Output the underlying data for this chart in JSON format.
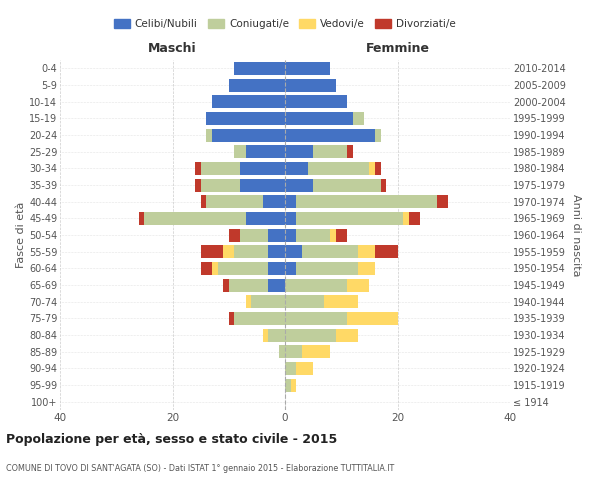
{
  "age_groups": [
    "100+",
    "95-99",
    "90-94",
    "85-89",
    "80-84",
    "75-79",
    "70-74",
    "65-69",
    "60-64",
    "55-59",
    "50-54",
    "45-49",
    "40-44",
    "35-39",
    "30-34",
    "25-29",
    "20-24",
    "15-19",
    "10-14",
    "5-9",
    "0-4"
  ],
  "birth_years": [
    "≤ 1914",
    "1915-1919",
    "1920-1924",
    "1925-1929",
    "1930-1934",
    "1935-1939",
    "1940-1944",
    "1945-1949",
    "1950-1954",
    "1955-1959",
    "1960-1964",
    "1965-1969",
    "1970-1974",
    "1975-1979",
    "1980-1984",
    "1985-1989",
    "1990-1994",
    "1995-1999",
    "2000-2004",
    "2005-2009",
    "2010-2014"
  ],
  "males": {
    "celibi": [
      0,
      0,
      0,
      0,
      0,
      0,
      0,
      3,
      3,
      3,
      3,
      7,
      4,
      8,
      8,
      7,
      13,
      14,
      13,
      10,
      9
    ],
    "coniugati": [
      0,
      0,
      0,
      1,
      3,
      9,
      6,
      7,
      9,
      6,
      5,
      18,
      10,
      7,
      7,
      2,
      1,
      0,
      0,
      0,
      0
    ],
    "vedovi": [
      0,
      0,
      0,
      0,
      1,
      0,
      1,
      0,
      1,
      2,
      0,
      0,
      0,
      0,
      0,
      0,
      0,
      0,
      0,
      0,
      0
    ],
    "divorziati": [
      0,
      0,
      0,
      0,
      0,
      1,
      0,
      1,
      2,
      4,
      2,
      1,
      1,
      1,
      1,
      0,
      0,
      0,
      0,
      0,
      0
    ]
  },
  "females": {
    "nubili": [
      0,
      0,
      0,
      0,
      0,
      0,
      0,
      0,
      2,
      3,
      2,
      2,
      2,
      5,
      4,
      5,
      16,
      12,
      11,
      9,
      8
    ],
    "coniugate": [
      0,
      1,
      2,
      3,
      9,
      11,
      7,
      11,
      11,
      10,
      6,
      19,
      25,
      12,
      11,
      6,
      1,
      2,
      0,
      0,
      0
    ],
    "vedove": [
      0,
      1,
      3,
      5,
      4,
      9,
      6,
      4,
      3,
      3,
      1,
      1,
      0,
      0,
      1,
      0,
      0,
      0,
      0,
      0,
      0
    ],
    "divorziate": [
      0,
      0,
      0,
      0,
      0,
      0,
      0,
      0,
      0,
      4,
      2,
      2,
      2,
      1,
      1,
      1,
      0,
      0,
      0,
      0,
      0
    ]
  },
  "colors": {
    "celibi": "#4472C4",
    "coniugati": "#BFCE9C",
    "vedovi": "#FFD966",
    "divorziati": "#C0392B"
  },
  "title": "Popolazione per età, sesso e stato civile - 2015",
  "subtitle": "COMUNE DI TOVO DI SANT'AGATA (SO) - Dati ISTAT 1° gennaio 2015 - Elaborazione TUTTITALIA.IT",
  "xlabel_left": "Maschi",
  "xlabel_right": "Femmine",
  "ylabel_left": "Fasce di età",
  "ylabel_right": "Anni di nascita",
  "xlim": 40,
  "background_color": "#ffffff",
  "grid_color": "#cccccc"
}
